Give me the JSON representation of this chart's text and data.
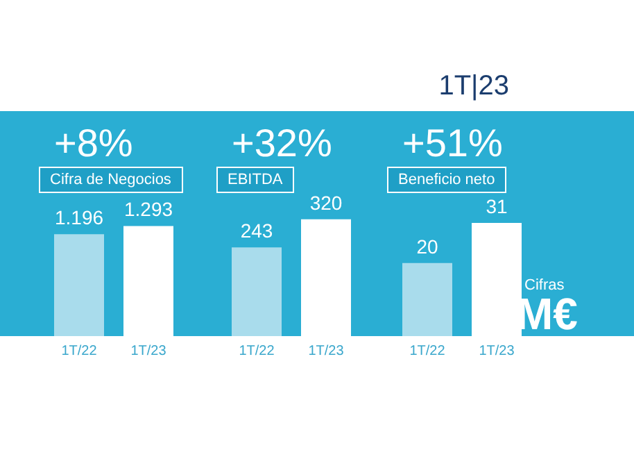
{
  "chart_data": [
    {
      "type": "bar",
      "title": "+8%",
      "subtitle": "Cifra de Negocios",
      "categories": [
        "1T/22",
        "1T/23"
      ],
      "values": [
        1196,
        1293
      ],
      "value_labels": [
        "1.196",
        "1.293"
      ],
      "colors": [
        "#a9dcec",
        "#ffffff"
      ],
      "annotations": [
        "1T|23"
      ]
    },
    {
      "type": "bar",
      "title": "+32%",
      "subtitle": "EBITDA",
      "categories": [
        "1T/22",
        "1T/23"
      ],
      "values": [
        243,
        320
      ],
      "value_labels": [
        "243",
        "320"
      ],
      "colors": [
        "#a9dcec",
        "#ffffff"
      ]
    },
    {
      "type": "bar",
      "title": "+51%",
      "subtitle": "Beneficio neto",
      "categories": [
        "1T/22",
        "1T/23"
      ],
      "values": [
        20,
        31
      ],
      "value_labels": [
        "20",
        "31"
      ],
      "colors": [
        "#a9dcec",
        "#ffffff"
      ],
      "annotations": [
        "Cifras",
        "M€"
      ]
    }
  ]
}
